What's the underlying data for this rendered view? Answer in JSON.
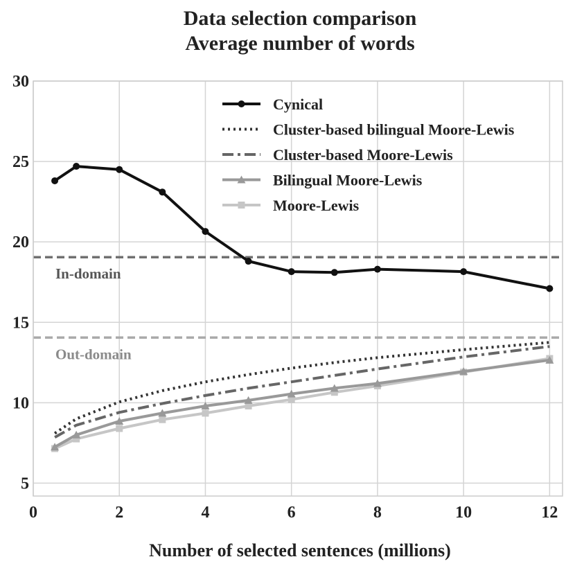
{
  "chart_data": {
    "type": "line",
    "title": "Data selection comparison",
    "subtitle": "Average number of words",
    "xlabel": "Number of selected sentences (millions)",
    "ylabel": "",
    "xlim": [
      0,
      12.3
    ],
    "ylim": [
      4.2,
      30
    ],
    "xticks": [
      0,
      2,
      4,
      6,
      8,
      10,
      12
    ],
    "yticks": [
      5,
      10,
      15,
      20,
      25,
      30
    ],
    "grid": true,
    "legend_position": "top-right",
    "series": [
      {
        "name": "Cynical",
        "color": "#111111",
        "style": "solid-circle",
        "x": [
          0.5,
          1,
          2,
          3,
          4,
          5,
          6,
          7,
          8,
          10,
          12
        ],
        "y": [
          23.8,
          24.7,
          24.5,
          23.1,
          20.65,
          18.8,
          18.15,
          18.1,
          18.3,
          18.15,
          17.1
        ]
      },
      {
        "name": "Cluster-based bilingual Moore-Lewis",
        "color": "#333333",
        "style": "dotted",
        "x": [
          0.5,
          1,
          2,
          3,
          4,
          5,
          6,
          7,
          8,
          10,
          12
        ],
        "y": [
          8.1,
          9.0,
          10.05,
          10.75,
          11.3,
          11.75,
          12.15,
          12.5,
          12.8,
          13.3,
          13.75
        ]
      },
      {
        "name": "Cluster-based Moore-Lewis",
        "color": "#666666",
        "style": "dashdot",
        "x": [
          0.5,
          1,
          2,
          3,
          4,
          5,
          6,
          7,
          8,
          10,
          12
        ],
        "y": [
          7.85,
          8.6,
          9.4,
          9.95,
          10.45,
          10.9,
          11.3,
          11.7,
          12.1,
          12.85,
          13.5
        ]
      },
      {
        "name": "Bilingual Moore-Lewis",
        "color": "#999999",
        "style": "solid-triangle",
        "x": [
          0.5,
          1,
          2,
          3,
          4,
          5,
          6,
          7,
          8,
          10,
          12
        ],
        "y": [
          7.25,
          8.0,
          8.85,
          9.35,
          9.8,
          10.15,
          10.55,
          10.9,
          11.2,
          11.95,
          12.65
        ]
      },
      {
        "name": "Moore-Lewis",
        "color": "#c6c6c6",
        "style": "solid-square",
        "x": [
          0.5,
          1,
          2,
          3,
          4,
          5,
          6,
          7,
          8,
          10,
          12
        ],
        "y": [
          7.15,
          7.75,
          8.4,
          8.95,
          9.35,
          9.8,
          10.2,
          10.65,
          11.05,
          11.9,
          12.75
        ]
      }
    ],
    "reference_lines": [
      {
        "label": "In-domain",
        "y": 19.05,
        "color": "#707070",
        "label_color": "#555555"
      },
      {
        "label": "Out-domain",
        "y": 14.05,
        "color": "#aaaaaa",
        "label_color": "#8a8a8a"
      }
    ]
  }
}
